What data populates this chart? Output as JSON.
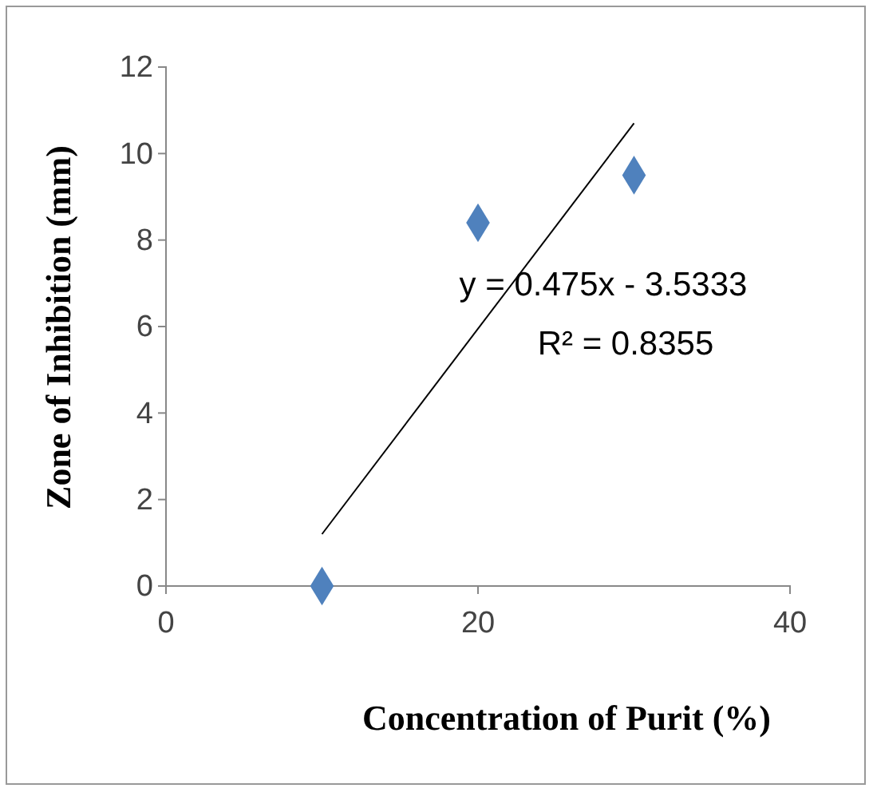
{
  "chart_data": {
    "type": "scatter",
    "xlabel": "Concentration of  Purit (%)",
    "ylabel": "Zone of Inhibition (mm)",
    "xlim": [
      0,
      40
    ],
    "xticks": [
      0,
      20,
      40
    ],
    "ylim": [
      0,
      12
    ],
    "yticks": [
      0,
      2,
      4,
      6,
      8,
      10,
      12
    ],
    "grid": false,
    "marker": "diamond",
    "series": [
      {
        "color": "#4f81bd",
        "x": [
          10,
          20,
          30
        ],
        "values": [
          0,
          8.4,
          9.5
        ]
      },
      {
        "type": "line",
        "color": "#000000",
        "x": [
          10,
          30
        ],
        "values": [
          1.2,
          10.7
        ],
        "marker": "none"
      }
    ],
    "annotations": [
      "y = 0.475x - 3.5333",
      "R² = 0.8355"
    ]
  }
}
